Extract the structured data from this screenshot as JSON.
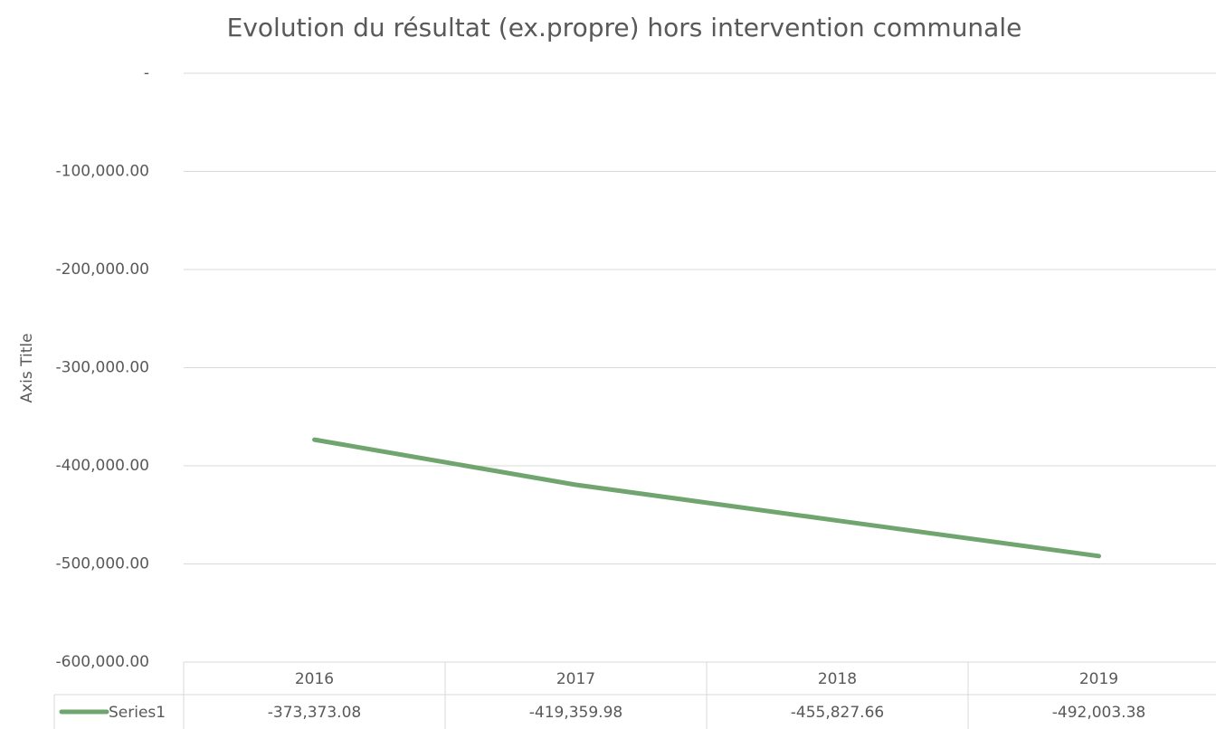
{
  "chart_data": {
    "type": "line",
    "title": "Evolution du résultat (ex.propre) hors intervention communale",
    "y_axis_label": "Axis Title",
    "categories": [
      "2016",
      "2017",
      "2018",
      "2019"
    ],
    "series": [
      {
        "name": "Series1",
        "color": "#70a56f",
        "values": [
          -373373.08,
          -419359.98,
          -455827.66,
          -492003.38
        ],
        "value_labels": [
          "-373,373.08",
          "-419,359.98",
          "-455,827.66",
          "-492,003.38"
        ]
      }
    ],
    "ylim": [
      -600000,
      0
    ],
    "yticks": [
      {
        "value": -600000,
        "label": "-600,000.00"
      },
      {
        "value": -500000,
        "label": "-500,000.00"
      },
      {
        "value": -400000,
        "label": "-400,000.00"
      },
      {
        "value": -300000,
        "label": "-300,000.00"
      },
      {
        "value": -200000,
        "label": "-200,000.00"
      },
      {
        "value": -100000,
        "label": "-100,000.00"
      },
      {
        "value": 0,
        "label": "-"
      }
    ],
    "grid": true
  }
}
